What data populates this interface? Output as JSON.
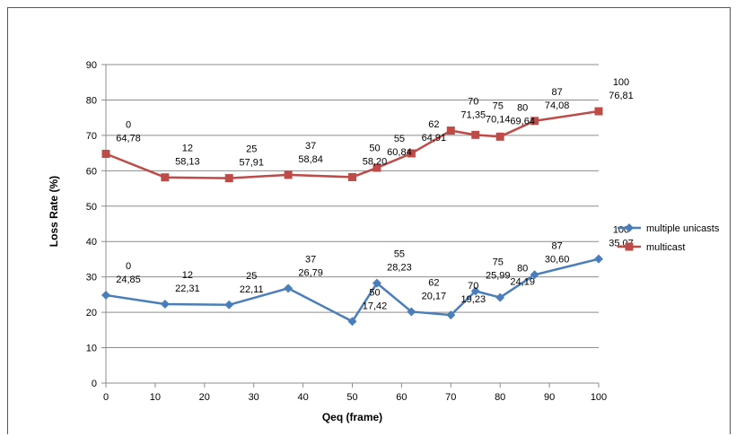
{
  "chart_data": {
    "type": "line",
    "xlabel": "Qeq (frame)",
    "ylabel": "Loss  Rate (%)",
    "xlim": [
      0,
      100
    ],
    "ylim": [
      0,
      90
    ],
    "xticks": [
      "0",
      "10",
      "20",
      "30",
      "40",
      "50",
      "60",
      "70",
      "80",
      "90",
      "100"
    ],
    "yticks": [
      "0",
      "10",
      "20",
      "30",
      "40",
      "50",
      "60",
      "70",
      "80",
      "90"
    ],
    "grid": true,
    "legend_position": "right",
    "series": [
      {
        "name": "multiple unicasts",
        "color": "#4a7ebb",
        "marker": "diamond",
        "x": [
          0,
          12,
          25,
          37,
          50,
          55,
          62,
          70,
          75,
          80,
          87,
          100
        ],
        "y": [
          24.85,
          22.31,
          22.11,
          26.79,
          17.42,
          28.23,
          20.17,
          19.23,
          25.99,
          24.19,
          30.6,
          35.07
        ],
        "x_labels": [
          "0",
          "12",
          "25",
          "37",
          "50",
          "55",
          "62",
          "70",
          "75",
          "80",
          "87",
          "100"
        ],
        "y_labels": [
          "24,85",
          "22,31",
          "22,11",
          "26,79",
          "17,42",
          "28,23",
          "20,17",
          "19,23",
          "25,99",
          "24,19",
          "30,60",
          "35,07"
        ]
      },
      {
        "name": "multicast",
        "color": "#be4b48",
        "marker": "square",
        "x": [
          0,
          12,
          25,
          37,
          50,
          55,
          62,
          70,
          75,
          80,
          87,
          100
        ],
        "y": [
          64.78,
          58.13,
          57.91,
          58.84,
          58.2,
          60.84,
          64.91,
          71.35,
          70.14,
          69.64,
          74.08,
          76.81
        ],
        "x_labels": [
          "0",
          "12",
          "25",
          "37",
          "50",
          "55",
          "62",
          "70",
          "75",
          "80",
          "87",
          "100"
        ],
        "y_labels": [
          "64,78",
          "58,13",
          "57,91",
          "58,84",
          "58,20",
          "60,84",
          "64,91",
          "71,35",
          "70,14",
          "69,64",
          "74,08",
          "76,81"
        ]
      }
    ]
  }
}
